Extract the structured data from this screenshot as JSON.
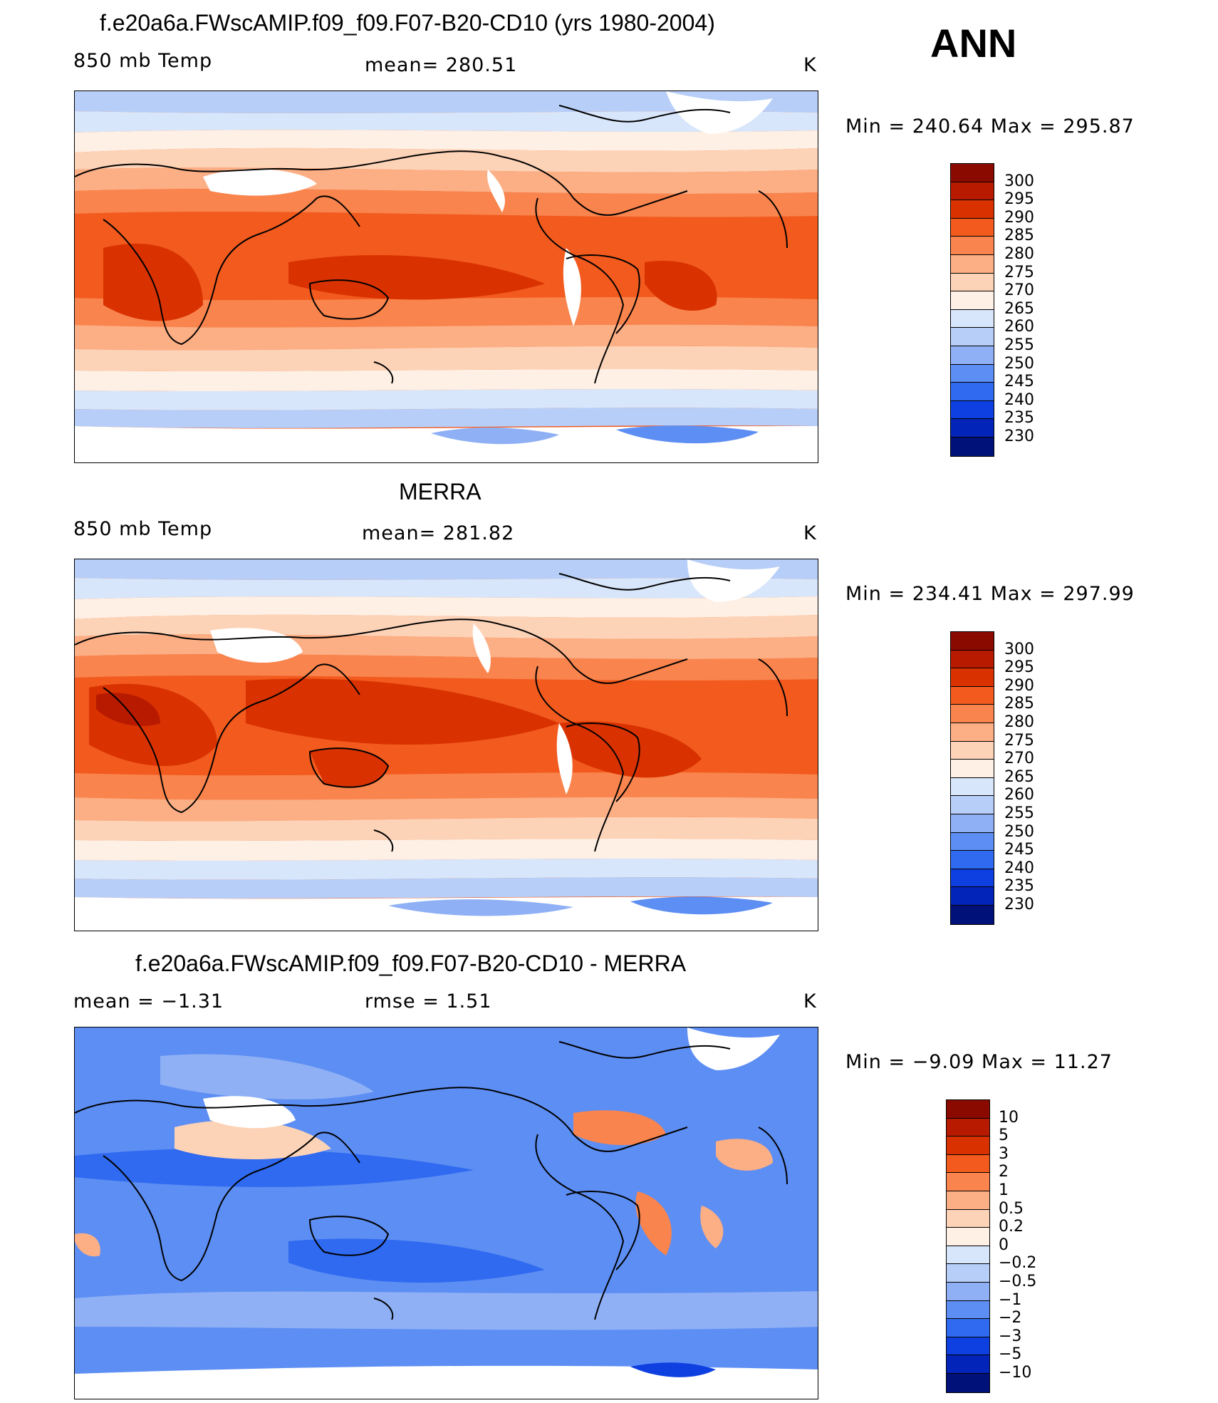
{
  "season": "ANN",
  "panels": [
    {
      "title": "f.e20a6a.FWscAMIP.f09_f09.F07-B20-CD10 (yrs 1980-2004)",
      "left": "850 mb Temp",
      "mid": "mean= 280.51",
      "right": "K",
      "minmax": "Min = 240.64 Max = 295.87",
      "levels": [
        "300",
        "295",
        "290",
        "285",
        "280",
        "275",
        "270",
        "265",
        "260",
        "255",
        "250",
        "245",
        "240",
        "235",
        "230"
      ],
      "colors": [
        "#8b0a00",
        "#b81a00",
        "#d93200",
        "#f25a1e",
        "#f9844d",
        "#fcae84",
        "#fdd3b8",
        "#fef0e4",
        "#d8e6fb",
        "#b7cef8",
        "#8fb0f5",
        "#5d8ef3",
        "#2f6af0",
        "#0e3fe0",
        "#0224b8",
        "#00127a"
      ]
    },
    {
      "title": "MERRA",
      "left": "850 mb Temp",
      "mid": "mean= 281.82",
      "right": "K",
      "minmax": "Min = 234.41 Max = 297.99",
      "levels": [
        "300",
        "295",
        "290",
        "285",
        "280",
        "275",
        "270",
        "265",
        "260",
        "255",
        "250",
        "245",
        "240",
        "235",
        "230"
      ],
      "colors": [
        "#8b0a00",
        "#b81a00",
        "#d93200",
        "#f25a1e",
        "#f9844d",
        "#fcae84",
        "#fdd3b8",
        "#fef0e4",
        "#d8e6fb",
        "#b7cef8",
        "#8fb0f5",
        "#5d8ef3",
        "#2f6af0",
        "#0e3fe0",
        "#0224b8",
        "#00127a"
      ]
    },
    {
      "title": "f.e20a6a.FWscAMIP.f09_f09.F07-B20-CD10 - MERRA",
      "left": "mean = −1.31",
      "mid": "rmse = 1.51",
      "right": "K",
      "minmax": "Min = −9.09 Max = 11.27",
      "levels": [
        "10",
        "5",
        "3",
        "2",
        "1",
        "0.5",
        "0.2",
        "0",
        "−0.2",
        "−0.5",
        "−1",
        "−2",
        "−3",
        "−5",
        "−10"
      ],
      "colors": [
        "#8b0a00",
        "#b81a00",
        "#d93200",
        "#f25a1e",
        "#f9844d",
        "#fcae84",
        "#fdd3b8",
        "#fef0e4",
        "#d8e6fb",
        "#b7cef8",
        "#8fb0f5",
        "#5d8ef3",
        "#2f6af0",
        "#0e3fe0",
        "#0224b8",
        "#00127a"
      ]
    }
  ]
}
